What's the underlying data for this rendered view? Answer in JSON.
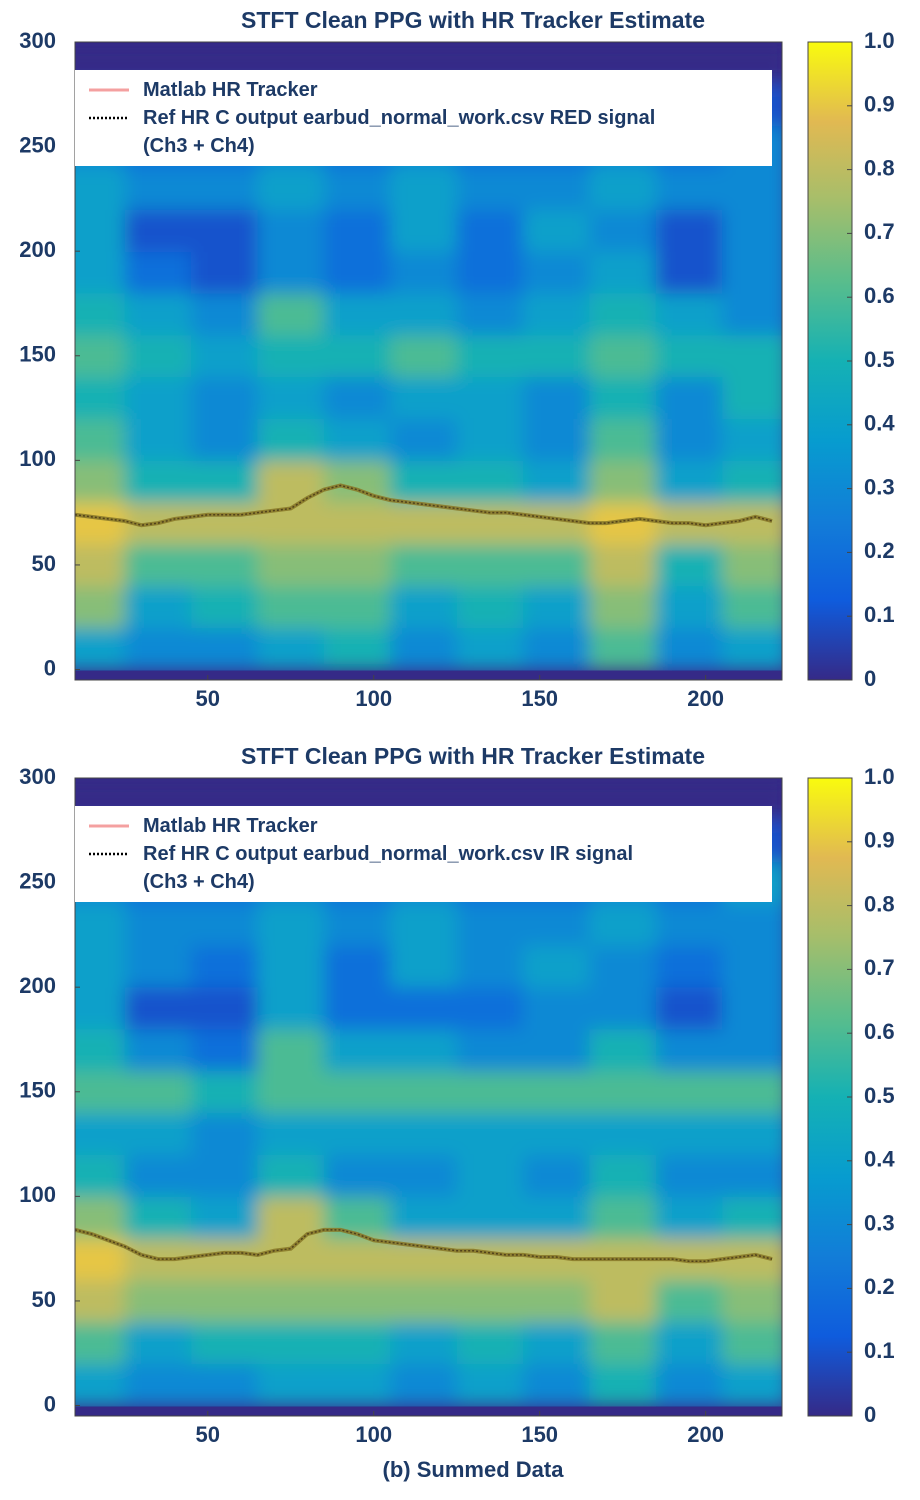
{
  "chart_data": [
    {
      "type": "heatmap",
      "title": "STFT Clean PPG with HR Tracker Estimate",
      "xlim": [
        10,
        223
      ],
      "xticks": [
        50,
        100,
        150,
        200
      ],
      "ylim": [
        -5,
        300
      ],
      "yticks": [
        0,
        50,
        100,
        150,
        200,
        250,
        300
      ],
      "clim": [
        0,
        1
      ],
      "cticks": [
        0,
        0.1,
        0.2,
        0.3,
        0.4,
        0.5,
        0.6,
        0.7,
        0.8,
        0.9,
        {
          "value": 1,
          "label": "1.0"
        }
      ],
      "colormap": [
        "#352a87",
        "#0f5cdd",
        "#127dd8",
        "#079ccf",
        "#15b1b4",
        "#59bd8c",
        "#a5be6b",
        "#e1b952",
        "#f9fb0e"
      ],
      "heatmap_x": [
        15,
        35,
        55,
        75,
        95,
        115,
        135,
        155,
        175,
        195,
        215
      ],
      "heatmap_y": [
        10,
        30,
        50,
        70,
        90,
        110,
        130,
        150,
        170,
        190,
        210,
        230,
        250,
        270,
        290
      ],
      "heatmap_z": [
        [
          0.4,
          0.3,
          0.3,
          0.4,
          0.5,
          0.3,
          0.4,
          0.3,
          0.6,
          0.3,
          0.4
        ],
        [
          0.7,
          0.4,
          0.5,
          0.6,
          0.6,
          0.4,
          0.5,
          0.4,
          0.7,
          0.4,
          0.6
        ],
        [
          0.8,
          0.6,
          0.6,
          0.7,
          0.7,
          0.6,
          0.6,
          0.6,
          0.8,
          0.5,
          0.7
        ],
        [
          0.9,
          0.8,
          0.8,
          0.8,
          0.8,
          0.8,
          0.8,
          0.8,
          0.9,
          0.8,
          0.8
        ],
        [
          0.7,
          0.5,
          0.5,
          0.8,
          0.7,
          0.5,
          0.5,
          0.4,
          0.7,
          0.4,
          0.5
        ],
        [
          0.6,
          0.4,
          0.3,
          0.5,
          0.4,
          0.3,
          0.4,
          0.3,
          0.6,
          0.3,
          0.4
        ],
        [
          0.5,
          0.4,
          0.3,
          0.4,
          0.3,
          0.4,
          0.4,
          0.3,
          0.5,
          0.3,
          0.5
        ],
        [
          0.6,
          0.5,
          0.4,
          0.5,
          0.5,
          0.6,
          0.5,
          0.5,
          0.6,
          0.5,
          0.5
        ],
        [
          0.5,
          0.4,
          0.3,
          0.6,
          0.4,
          0.4,
          0.3,
          0.4,
          0.5,
          0.4,
          0.3
        ],
        [
          0.4,
          0.2,
          0.1,
          0.3,
          0.2,
          0.3,
          0.2,
          0.3,
          0.4,
          0.1,
          0.3
        ],
        [
          0.4,
          0.1,
          0.1,
          0.3,
          0.2,
          0.4,
          0.2,
          0.4,
          0.3,
          0.1,
          0.3
        ],
        [
          0.4,
          0.3,
          0.3,
          0.4,
          0.3,
          0.4,
          0.3,
          0.3,
          0.4,
          0.3,
          0.3
        ],
        [
          0.3,
          0.2,
          0.2,
          0.3,
          0.2,
          0.3,
          0.2,
          0.2,
          0.3,
          0.2,
          0.3
        ],
        [
          0.1,
          0.1,
          0.1,
          0.1,
          0.1,
          0.1,
          0.1,
          0.1,
          0.1,
          0.1,
          0.1
        ],
        [
          0,
          0,
          0,
          0,
          0,
          0,
          0,
          0,
          0,
          0,
          0
        ]
      ],
      "x": [
        10,
        15,
        20,
        25,
        30,
        35,
        40,
        45,
        50,
        55,
        60,
        65,
        70,
        75,
        80,
        85,
        90,
        95,
        100,
        105,
        110,
        115,
        120,
        125,
        130,
        135,
        140,
        145,
        150,
        155,
        160,
        165,
        170,
        175,
        180,
        185,
        190,
        195,
        200,
        205,
        210,
        215,
        220
      ],
      "series": [
        {
          "name": "Matlab HR Tracker",
          "color": "#f4a0a0",
          "values": [
            74,
            73,
            72,
            71,
            69,
            70,
            72,
            73,
            74,
            74,
            74,
            75,
            76,
            77,
            82,
            86,
            88,
            86,
            83,
            81,
            80,
            79,
            78,
            77,
            76,
            75,
            75,
            74,
            73,
            72,
            71,
            70,
            70,
            71,
            72,
            71,
            70,
            70,
            69,
            70,
            71,
            73,
            71
          ]
        },
        {
          "name": "Ref HR C output earbud_normal_work.csv RED signal\n(Ch3 + Ch4)",
          "color": "#000000",
          "values": [
            74,
            73,
            72,
            71,
            69,
            70,
            72,
            73,
            74,
            74,
            74,
            75,
            76,
            77,
            82,
            86,
            88,
            86,
            83,
            81,
            80,
            79,
            78,
            77,
            76,
            75,
            75,
            74,
            73,
            72,
            71,
            70,
            70,
            71,
            72,
            71,
            70,
            70,
            69,
            70,
            71,
            73,
            71
          ]
        }
      ]
    },
    {
      "type": "heatmap",
      "title": "STFT Clean PPG with HR Tracker Estimate",
      "xlabel": "(b) Summed Data",
      "xlim": [
        10,
        223
      ],
      "xticks": [
        50,
        100,
        150,
        200
      ],
      "ylim": [
        -5,
        300
      ],
      "yticks": [
        0,
        50,
        100,
        150,
        200,
        250,
        300
      ],
      "clim": [
        0,
        1
      ],
      "cticks": [
        0,
        0.1,
        0.2,
        0.3,
        0.4,
        0.5,
        0.6,
        0.7,
        0.8,
        0.9,
        {
          "value": 1,
          "label": "1.0"
        }
      ],
      "colormap": [
        "#352a87",
        "#0f5cdd",
        "#127dd8",
        "#079ccf",
        "#15b1b4",
        "#59bd8c",
        "#a5be6b",
        "#e1b952",
        "#f9fb0e"
      ],
      "heatmap_x": [
        15,
        35,
        55,
        75,
        95,
        115,
        135,
        155,
        175,
        195,
        215
      ],
      "heatmap_y": [
        10,
        30,
        50,
        70,
        90,
        110,
        130,
        150,
        170,
        190,
        210,
        230,
        250,
        270,
        290
      ],
      "heatmap_z": [
        [
          0.4,
          0.3,
          0.3,
          0.4,
          0.4,
          0.3,
          0.4,
          0.3,
          0.5,
          0.3,
          0.4
        ],
        [
          0.6,
          0.4,
          0.5,
          0.5,
          0.5,
          0.4,
          0.5,
          0.4,
          0.6,
          0.4,
          0.6
        ],
        [
          0.8,
          0.7,
          0.7,
          0.7,
          0.7,
          0.7,
          0.7,
          0.7,
          0.8,
          0.6,
          0.7
        ],
        [
          0.9,
          0.8,
          0.8,
          0.8,
          0.8,
          0.8,
          0.8,
          0.8,
          0.8,
          0.8,
          0.8
        ],
        [
          0.7,
          0.5,
          0.4,
          0.8,
          0.6,
          0.4,
          0.4,
          0.4,
          0.6,
          0.4,
          0.5
        ],
        [
          0.5,
          0.3,
          0.3,
          0.5,
          0.3,
          0.3,
          0.4,
          0.3,
          0.5,
          0.3,
          0.3
        ],
        [
          0.4,
          0.4,
          0.3,
          0.4,
          0.4,
          0.4,
          0.4,
          0.4,
          0.4,
          0.4,
          0.4
        ],
        [
          0.6,
          0.6,
          0.5,
          0.6,
          0.6,
          0.6,
          0.6,
          0.6,
          0.6,
          0.6,
          0.6
        ],
        [
          0.5,
          0.3,
          0.2,
          0.6,
          0.4,
          0.4,
          0.3,
          0.3,
          0.5,
          0.3,
          0.3
        ],
        [
          0.4,
          0.1,
          0.1,
          0.4,
          0.2,
          0.2,
          0.2,
          0.3,
          0.3,
          0.1,
          0.3
        ],
        [
          0.4,
          0.3,
          0.2,
          0.4,
          0.2,
          0.4,
          0.3,
          0.4,
          0.3,
          0.2,
          0.3
        ],
        [
          0.4,
          0.3,
          0.3,
          0.4,
          0.3,
          0.4,
          0.3,
          0.3,
          0.4,
          0.3,
          0.3
        ],
        [
          0.3,
          0.2,
          0.2,
          0.3,
          0.2,
          0.3,
          0.2,
          0.2,
          0.3,
          0.2,
          0.4
        ],
        [
          0.1,
          0.1,
          0.1,
          0.1,
          0.1,
          0.1,
          0.1,
          0.1,
          0.1,
          0.1,
          0.1
        ],
        [
          0,
          0,
          0,
          0,
          0,
          0,
          0,
          0,
          0,
          0,
          0
        ]
      ],
      "x": [
        10,
        15,
        20,
        25,
        30,
        35,
        40,
        45,
        50,
        55,
        60,
        65,
        70,
        75,
        80,
        85,
        90,
        95,
        100,
        105,
        110,
        115,
        120,
        125,
        130,
        135,
        140,
        145,
        150,
        155,
        160,
        165,
        170,
        175,
        180,
        185,
        190,
        195,
        200,
        205,
        210,
        215,
        220
      ],
      "series": [
        {
          "name": "Matlab HR Tracker",
          "color": "#f4a0a0",
          "values": [
            84,
            82,
            79,
            76,
            72,
            70,
            70,
            71,
            72,
            73,
            73,
            72,
            74,
            75,
            82,
            84,
            84,
            82,
            79,
            78,
            77,
            76,
            75,
            74,
            74,
            73,
            72,
            72,
            71,
            71,
            70,
            70,
            70,
            70,
            70,
            70,
            70,
            69,
            69,
            70,
            71,
            72,
            70
          ]
        },
        {
          "name": "Ref HR C output earbud_normal_work.csv IR signal\n(Ch3 + Ch4)",
          "color": "#000000",
          "values": [
            84,
            82,
            79,
            76,
            72,
            70,
            70,
            71,
            72,
            73,
            73,
            72,
            74,
            75,
            82,
            84,
            84,
            82,
            79,
            78,
            77,
            76,
            75,
            74,
            74,
            73,
            72,
            72,
            71,
            71,
            70,
            70,
            70,
            70,
            70,
            70,
            70,
            69,
            69,
            70,
            71,
            72,
            70
          ]
        }
      ]
    }
  ]
}
